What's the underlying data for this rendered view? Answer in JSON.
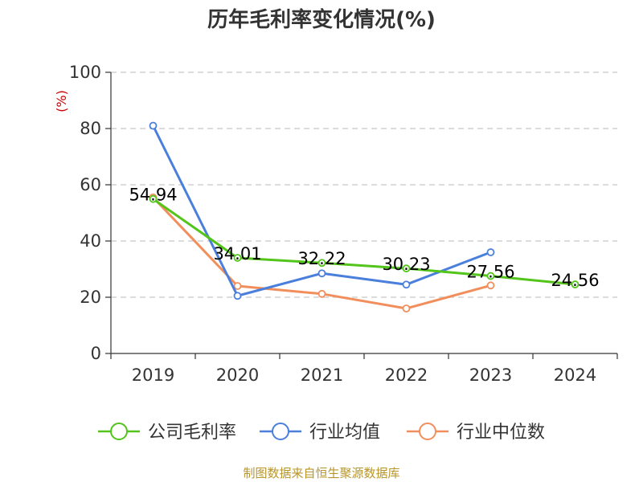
{
  "chart_data": {
    "type": "line",
    "title": "历年毛利率变化情况(%)",
    "unit_label": "(%)",
    "categories": [
      "2019",
      "2020",
      "2021",
      "2022",
      "2023",
      "2024"
    ],
    "ylim": [
      0,
      100
    ],
    "yticks": [
      0,
      20,
      40,
      60,
      80,
      100
    ],
    "grid": true,
    "legend_position": "bottom",
    "series": [
      {
        "name": "公司毛利率",
        "color": "#52c41a",
        "values": [
          54.94,
          34.01,
          32.22,
          30.23,
          27.56,
          24.56
        ],
        "labels": [
          "54.94",
          "34.01",
          "32.22",
          "30.23",
          "27.56",
          "24.56"
        ]
      },
      {
        "name": "行业均值",
        "color": "#4a7fdc",
        "values": [
          81,
          20.5,
          28.5,
          24.5,
          36,
          null
        ]
      },
      {
        "name": "行业中位数",
        "color": "#f28e5b",
        "values": [
          55.5,
          24,
          21.2,
          16,
          24.2,
          null
        ]
      }
    ]
  },
  "footer": "制图数据来自恒生聚源数据库"
}
